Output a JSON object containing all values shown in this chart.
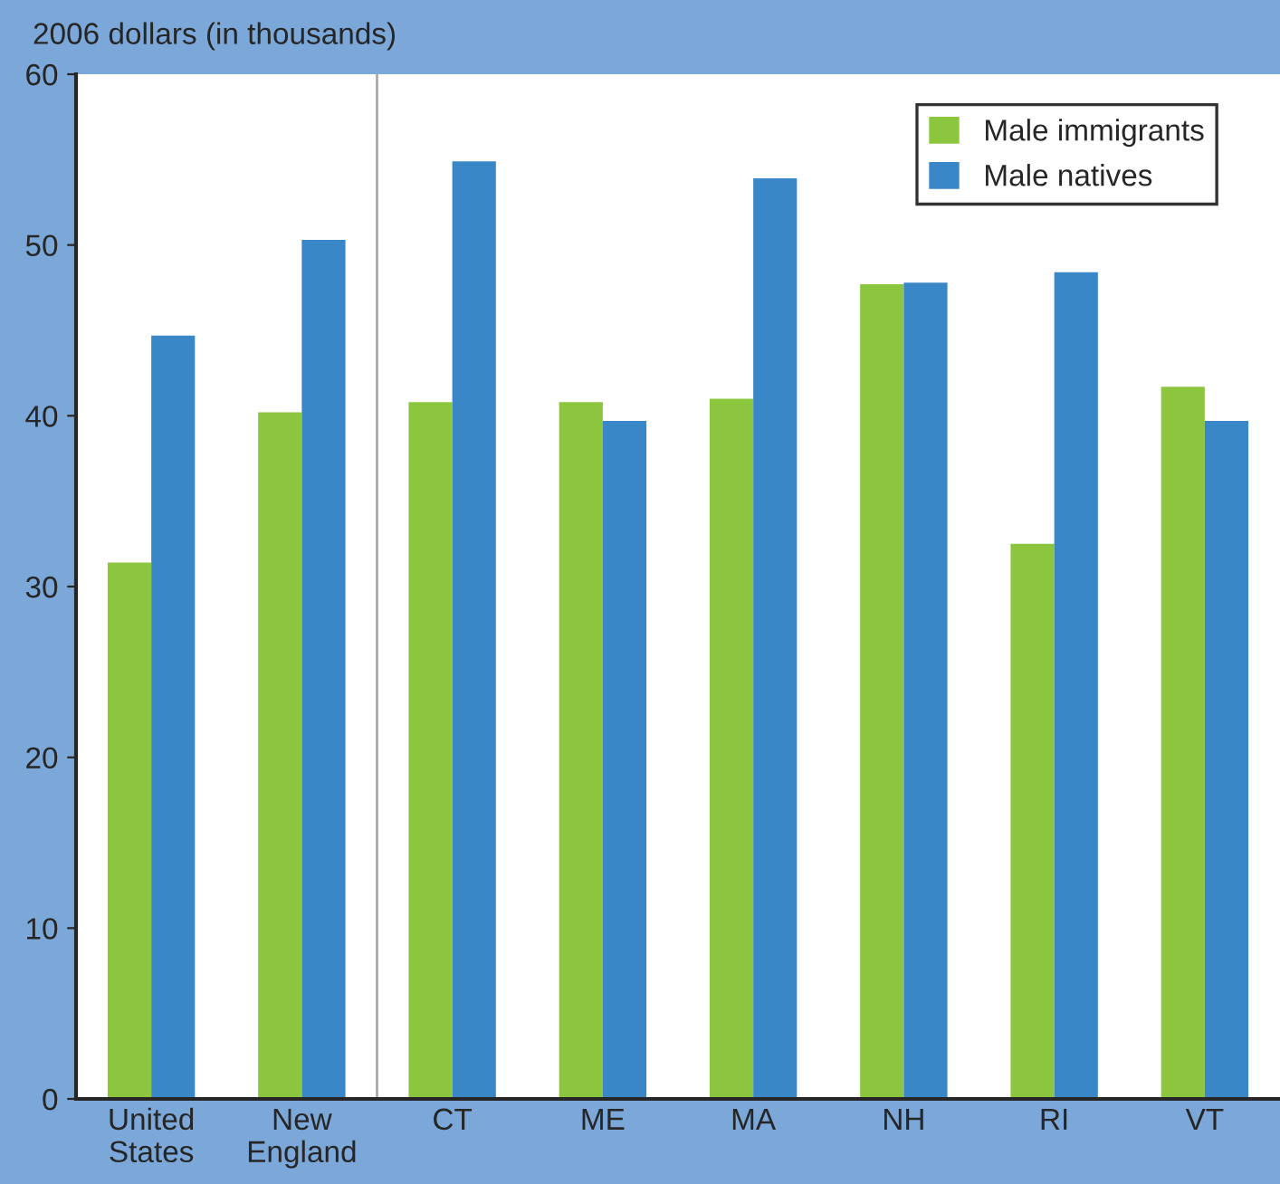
{
  "chart_data": {
    "type": "bar",
    "ylabel": "2006 dollars (in thousands)",
    "categories": [
      "United\nStates",
      "New\nEngland",
      "CT",
      "ME",
      "MA",
      "NH",
      "RI",
      "VT"
    ],
    "series": [
      {
        "name": "Male immigrants",
        "color": "#8cc63f",
        "values": [
          31.4,
          40.2,
          40.8,
          40.8,
          41.0,
          47.7,
          32.5,
          41.7
        ]
      },
      {
        "name": "Male natives",
        "color": "#3a87c8",
        "values": [
          44.7,
          50.3,
          54.9,
          39.7,
          53.9,
          47.8,
          48.4,
          39.7
        ]
      }
    ],
    "ylim": [
      0,
      60
    ],
    "yticks": [
      0,
      10,
      20,
      30,
      40,
      50,
      60
    ],
    "grid": false,
    "legend": "top right"
  }
}
